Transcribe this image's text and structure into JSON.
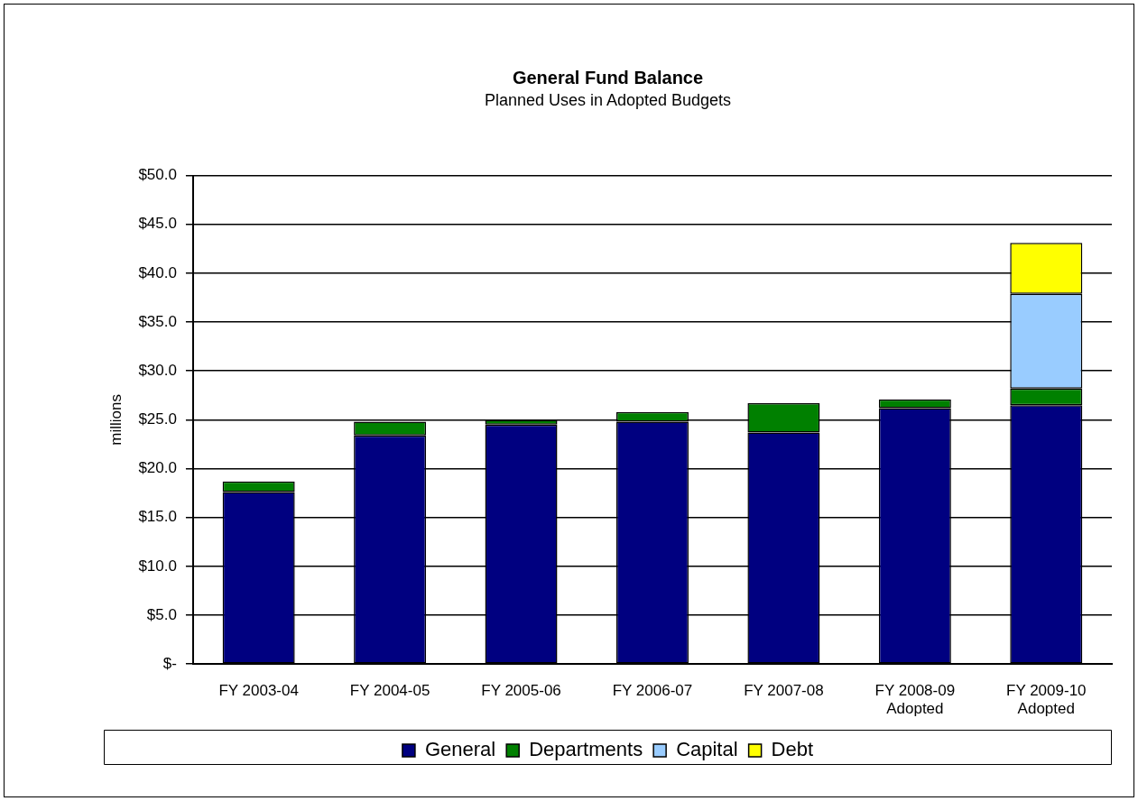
{
  "chart_data": {
    "type": "bar",
    "title": "General Fund Balance",
    "subtitle": "Planned Uses in Adopted Budgets",
    "ylabel": "millions",
    "categories": [
      "FY 2003-04",
      "FY 2004-05",
      "FY 2005-06",
      "FY 2006-07",
      "FY 2007-08",
      "FY 2008-09\nAdopted",
      "FY 2009-10\nAdopted"
    ],
    "stacked": true,
    "series": [
      {
        "name": "General",
        "color": "#000080",
        "values": [
          17.6,
          23.4,
          24.5,
          24.8,
          23.7,
          26.2,
          26.5
        ]
      },
      {
        "name": "Departments",
        "color": "#008000",
        "values": [
          1.1,
          1.4,
          0.5,
          1.0,
          3.0,
          0.9,
          1.7
        ]
      },
      {
        "name": "Capital",
        "color": "#99ccff",
        "values": [
          0,
          0,
          0,
          0,
          0,
          0,
          9.7
        ]
      },
      {
        "name": "Debt",
        "color": "#ffff00",
        "values": [
          0,
          0,
          0,
          0,
          0,
          0,
          5.2
        ]
      }
    ],
    "ylim": [
      0,
      50
    ],
    "yticks": [
      {
        "value": 0,
        "label": "$-"
      },
      {
        "value": 5,
        "label": "$5.0"
      },
      {
        "value": 10,
        "label": "$10.0"
      },
      {
        "value": 15,
        "label": "$15.0"
      },
      {
        "value": 20,
        "label": "$20.0"
      },
      {
        "value": 25,
        "label": "$25.0"
      },
      {
        "value": 30,
        "label": "$30.0"
      },
      {
        "value": 35,
        "label": "$35.0"
      },
      {
        "value": 40,
        "label": "$40.0"
      },
      {
        "value": 45,
        "label": "$45.0"
      },
      {
        "value": 50,
        "label": "$50.0"
      }
    ],
    "grid": "y",
    "legend": "bottom"
  }
}
